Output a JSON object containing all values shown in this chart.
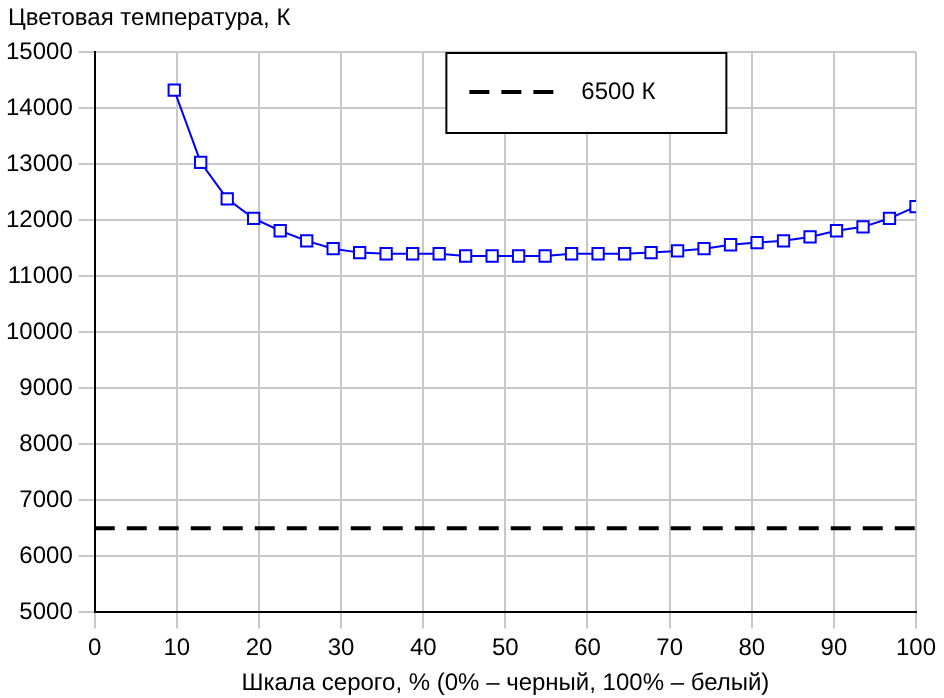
{
  "chart_data": {
    "type": "line",
    "ylabel": "Цветовая температура, К",
    "xlabel": "Шкала серого, % (0% – черный, 100% – белый)",
    "x": [
      9.68,
      12.9,
      16.13,
      19.35,
      22.58,
      25.81,
      29.03,
      32.26,
      35.48,
      38.71,
      41.94,
      45.16,
      48.39,
      51.61,
      54.84,
      58.06,
      61.29,
      64.52,
      67.74,
      70.97,
      74.19,
      77.42,
      80.65,
      83.87,
      87.1,
      90.32,
      93.55,
      96.77,
      100
    ],
    "series": [
      {
        "color": "#0000ff",
        "values": [
          14320,
          13030,
          12380,
          12030,
          11810,
          11630,
          11490,
          11420,
          11400,
          11400,
          11400,
          11360,
          11360,
          11360,
          11360,
          11400,
          11400,
          11400,
          11420,
          11450,
          11490,
          11560,
          11600,
          11630,
          11700,
          11810,
          11880,
          12030,
          12240
        ]
      }
    ],
    "xlim": [
      0,
      100
    ],
    "xticks": [
      0,
      10,
      20,
      30,
      40,
      50,
      60,
      70,
      80,
      90,
      100
    ],
    "ylim": [
      5000,
      15000
    ],
    "yticks": [
      5000,
      6000,
      7000,
      8000,
      9000,
      10000,
      11000,
      12000,
      13000,
      14000,
      15000
    ],
    "ref_lines": [
      {
        "axis": "y",
        "value": 6500,
        "label": "6500 К",
        "color": "#000000",
        "line_style": "dashed"
      }
    ],
    "grid": true,
    "legend": "top",
    "marker": "square",
    "line_style": "solid"
  }
}
